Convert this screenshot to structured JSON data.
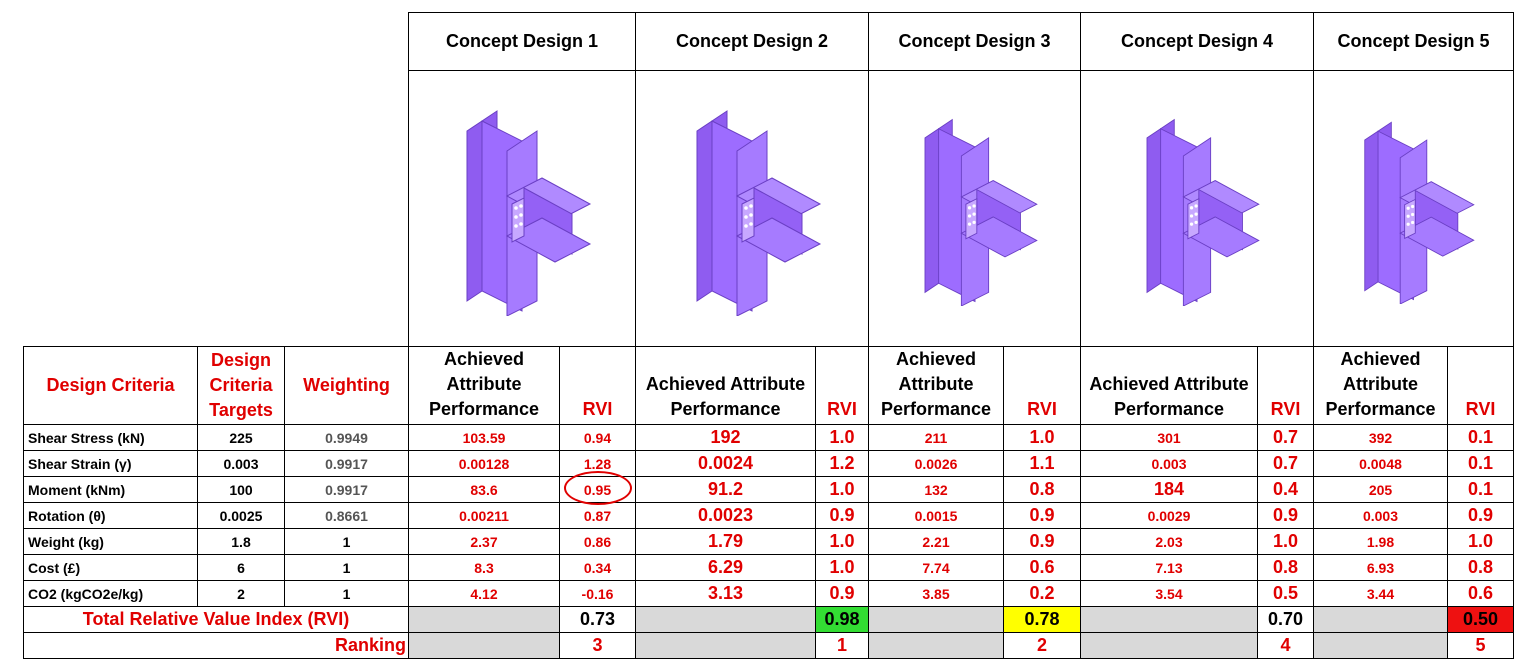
{
  "concepts": [
    "Concept Design 1",
    "Concept Design 2",
    "Concept Design 3",
    "Concept Design 4",
    "Concept Design 5"
  ],
  "headers": {
    "criteria": "Design Criteria",
    "targets": "Design Criteria Targets",
    "weighting": "Weighting",
    "achieved": "Achieved Attribute Performance",
    "rvi": "RVI"
  },
  "rows": [
    {
      "criteria": "Shear Stress (kN)",
      "target": "225",
      "weight": "0.9949",
      "values": [
        "103.59",
        "0.94",
        "192",
        "1.0",
        "211",
        "1.0",
        "301",
        "0.7",
        "392",
        "0.1"
      ]
    },
    {
      "criteria": "Shear Strain (γ)",
      "target": "0.003",
      "weight": "0.9917",
      "values": [
        "0.00128",
        "1.28",
        "0.0024",
        "1.2",
        "0.0026",
        "1.1",
        "0.003",
        "0.7",
        "0.0048",
        "0.1"
      ]
    },
    {
      "criteria": "Moment (kNm)",
      "target": "100",
      "weight": "0.9917",
      "values": [
        "83.6",
        "0.95",
        "91.2",
        "1.0",
        "132",
        "0.8",
        "184",
        "0.4",
        "205",
        "0.1"
      ]
    },
    {
      "criteria": "Rotation (θ)",
      "target": "0.0025",
      "weight": "0.8661",
      "values": [
        "0.00211",
        "0.87",
        "0.0023",
        "0.9",
        "0.0015",
        "0.9",
        "0.0029",
        "0.9",
        "0.003",
        "0.9"
      ]
    },
    {
      "criteria": "Weight (kg)",
      "target": "1.8",
      "weight": "1",
      "values": [
        "2.37",
        "0.86",
        "1.79",
        "1.0",
        "2.21",
        "0.9",
        "2.03",
        "1.0",
        "1.98",
        "1.0"
      ]
    },
    {
      "criteria": "Cost (£)",
      "target": "6",
      "weight": "1",
      "values": [
        "8.3",
        "0.34",
        "6.29",
        "1.0",
        "7.74",
        "0.6",
        "7.13",
        "0.8",
        "6.93",
        "0.8"
      ]
    },
    {
      "criteria": "CO2 (kgCO2e/kg)",
      "target": "2",
      "weight": "1",
      "values": [
        "4.12",
        "-0.16",
        "3.13",
        "0.9",
        "3.85",
        "0.2",
        "3.54",
        "0.5",
        "3.44",
        "0.6"
      ]
    }
  ],
  "total": {
    "label": "Total Relative Value Index (RVI)",
    "values": [
      "0.73",
      "0.98",
      "0.78",
      "0.70",
      "0.50"
    ],
    "highlight_colors": [
      "#ffffff",
      "#33dd33",
      "#ffff00",
      "#ffffff",
      "#ee1111"
    ]
  },
  "ranking": {
    "label": "Ranking",
    "values": [
      "3",
      "1",
      "2",
      "4",
      "5"
    ]
  },
  "colors": {
    "red_text": "#e00000",
    "beam": "#9966ff",
    "grey_cell": "#d9d9d9"
  }
}
